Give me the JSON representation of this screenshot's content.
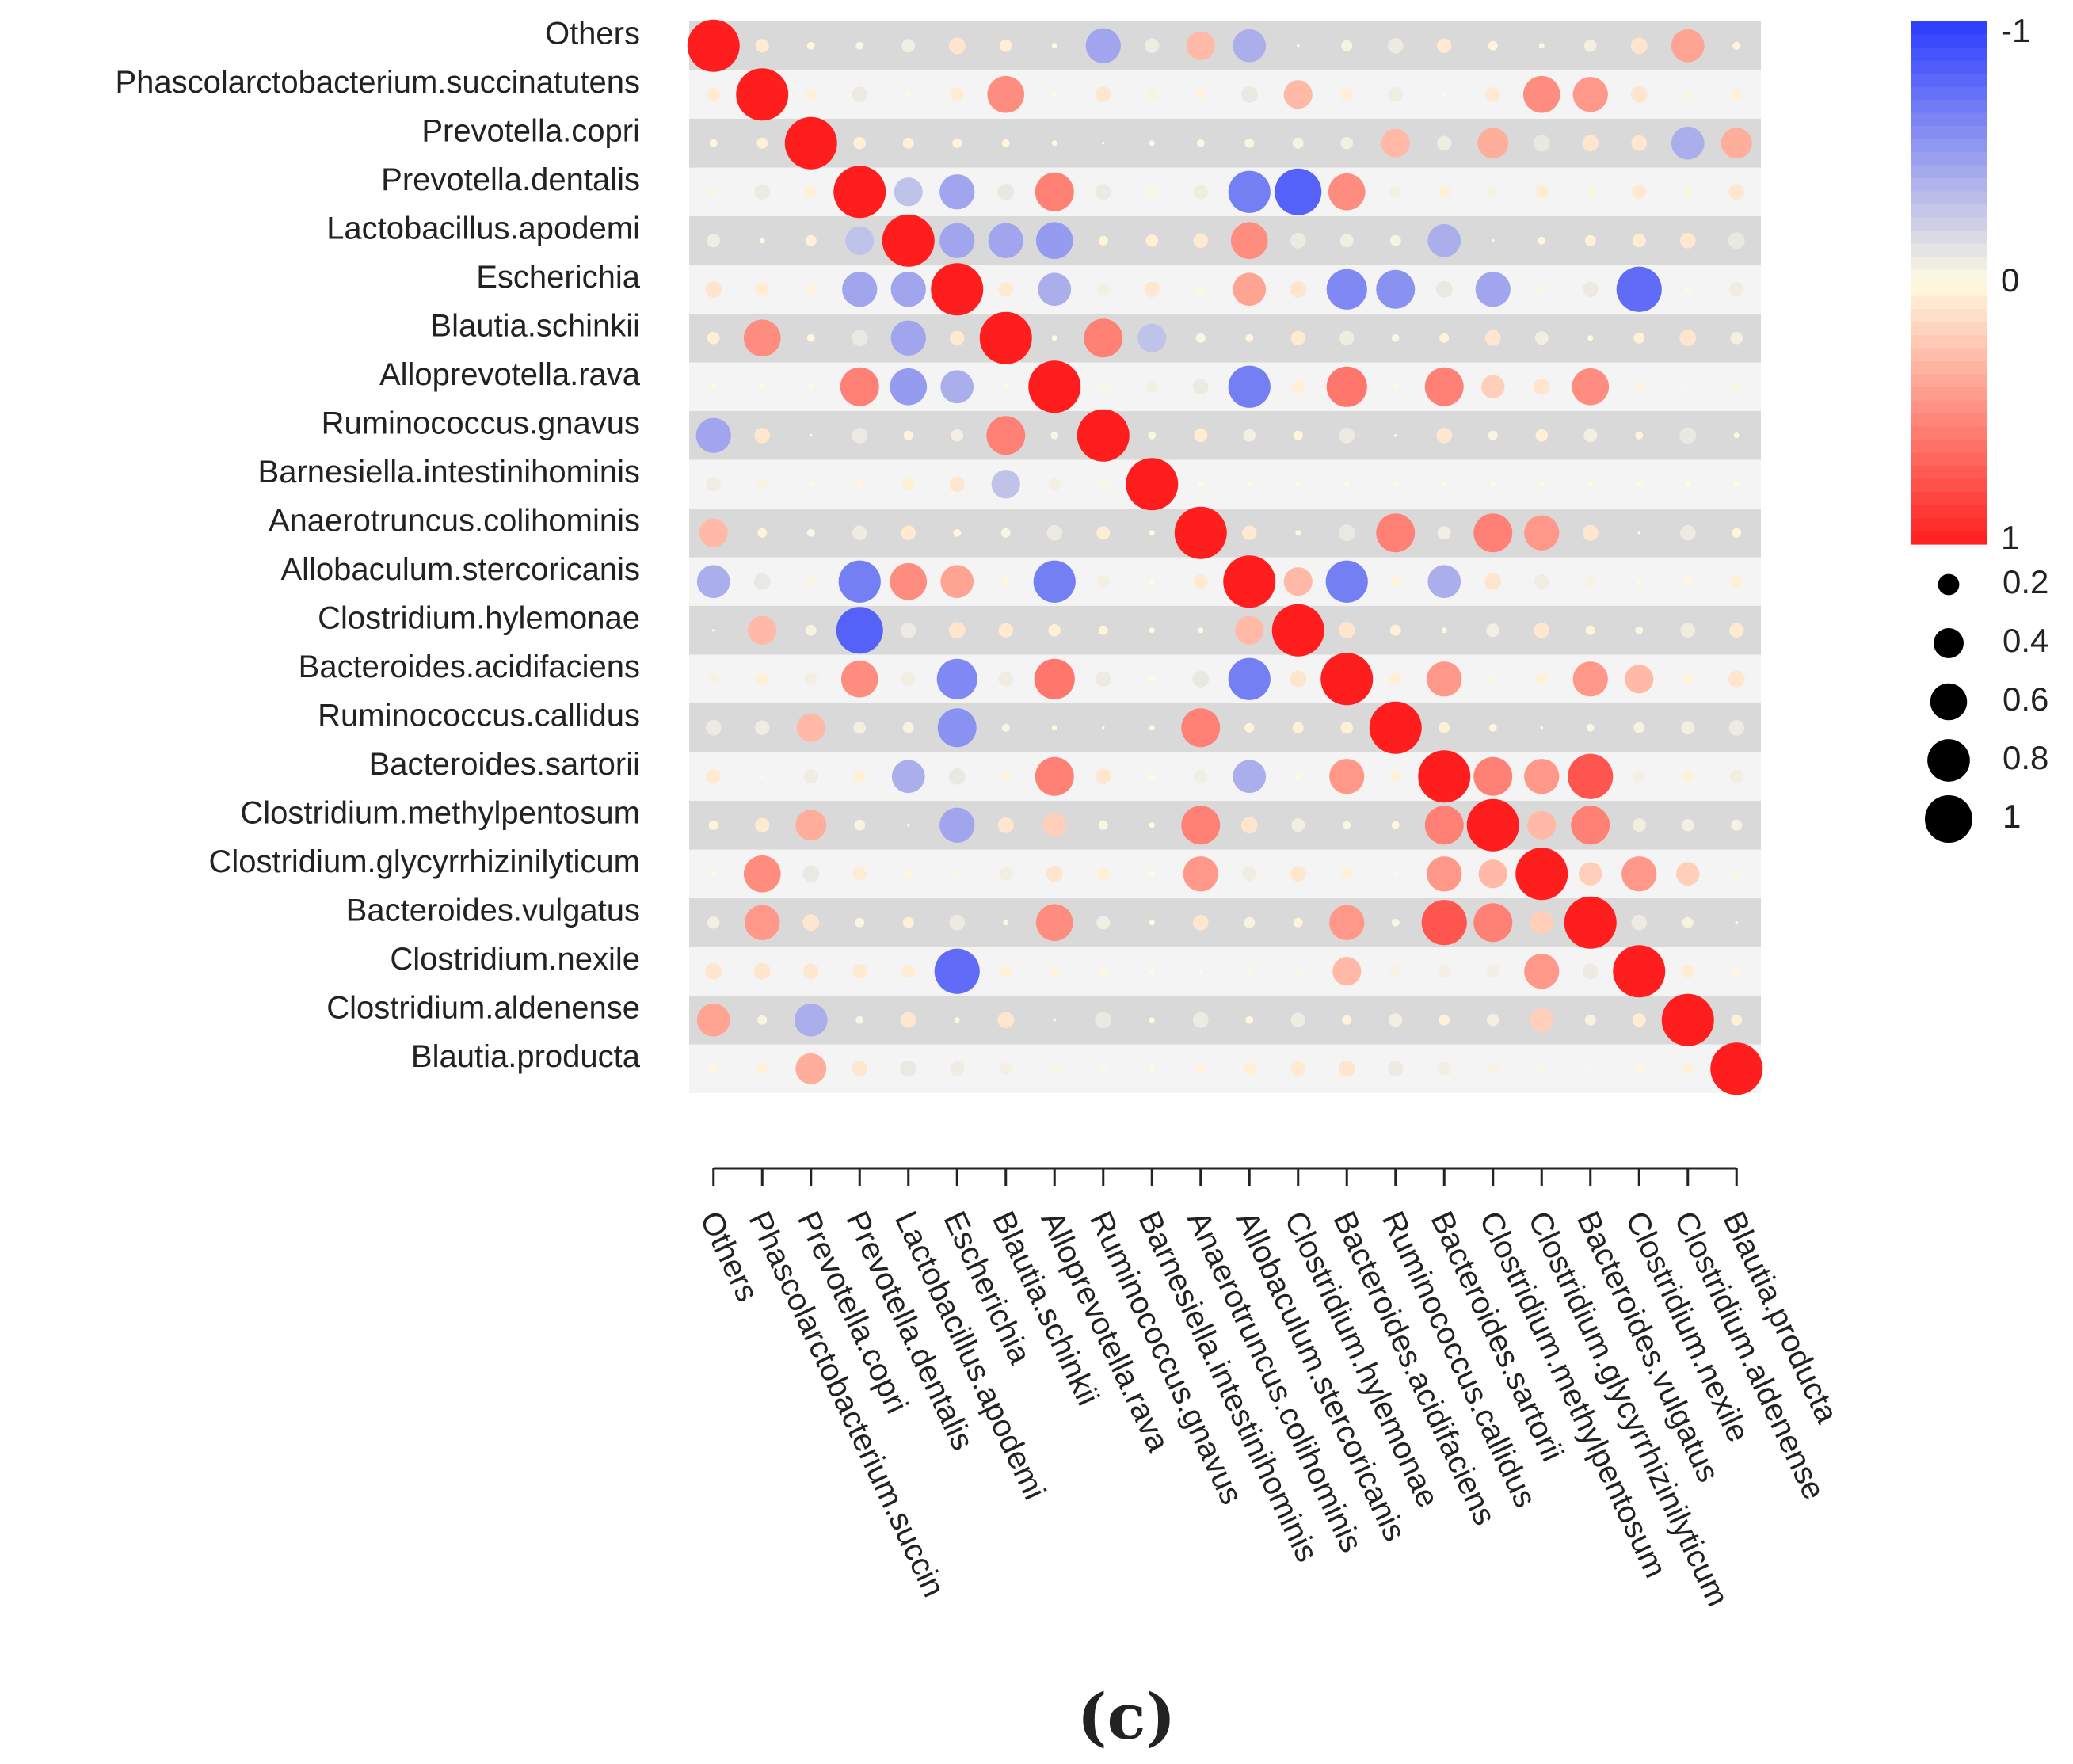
{
  "chart_data": {
    "type": "heatmap",
    "subtype": "correlation-dot-matrix",
    "panel_label": "(c)",
    "labels": [
      "Others",
      "Phascolarctobacterium.succinatutens",
      "Prevotella.copri",
      "Prevotella.dentalis",
      "Lactobacillus.apodemi",
      "Escherichia",
      "Blautia.schinkii",
      "Alloprevotella.rava",
      "Ruminococcus.gnavus",
      "Barnesiella.intestinihominis",
      "Anaerotruncus.colihominis",
      "Allobaculum.stercoricanis",
      "Clostridium.hylemonae",
      "Bacteroides.acidifaciens",
      "Ruminococcus.callidus",
      "Bacteroides.sartorii",
      "Clostridium.methylpentosum",
      "Clostridium.glycyrrhizinilyticum",
      "Bacteroides.vulgatus",
      "Clostridium.nexile",
      "Clostridium.aldenense",
      "Blautia.producta"
    ],
    "x_tick_labels": [
      "Others",
      "Phascolarctobacterium.succin",
      "Prevotella.copri",
      "Prevotella.dentalis",
      "Lactobacillus.apodemi",
      "Escherichia",
      "Blautia.schinkii",
      "Alloprevotella.rava",
      "Ruminococcus.gnavus",
      "Barnesiella.intestinihominis",
      "Anaerotruncus.colihominis",
      "Allobaculum.stercoricanis",
      "Clostridium.hylemonae",
      "Bacteroides.acidifaciens",
      "Ruminococcus.callidus",
      "Bacteroides.sartorii",
      "Clostridium.methylpentosum",
      "Clostridium.glycyrrhizinilyticum",
      "Bacteroides.vulgatus",
      "Clostridium.nexile",
      "Clostridium.aldenense",
      "Blautia.producta"
    ],
    "notable_correlations": [
      {
        "a": "Prevotella.dentalis",
        "b": "Alloprevotella.rava",
        "r": 0.55
      },
      {
        "a": "Prevotella.dentalis",
        "b": "Allobaculum.stercoricanis",
        "r": -0.65
      },
      {
        "a": "Prevotella.dentalis",
        "b": "Clostridium.hylemonae",
        "r": -0.8
      },
      {
        "a": "Prevotella.dentalis",
        "b": "Bacteroides.acidifaciens",
        "r": 0.5
      },
      {
        "a": "Prevotella.dentalis",
        "b": "Lactobacillus.apodemi",
        "r": -0.3
      },
      {
        "a": "Prevotella.dentalis",
        "b": "Escherichia",
        "r": -0.45
      },
      {
        "a": "Phascolarctobacterium.succinatutens",
        "b": "Blautia.schinkii",
        "r": 0.5
      },
      {
        "a": "Phascolarctobacterium.succinatutens",
        "b": "Clostridium.glycyrrhizinilyticum",
        "r": 0.5
      },
      {
        "a": "Phascolarctobacterium.succinatutens",
        "b": "Bacteroides.vulgatus",
        "r": 0.45
      },
      {
        "a": "Phascolarctobacterium.succinatutens",
        "b": "Clostridium.hylemonae",
        "r": 0.3
      },
      {
        "a": "Lactobacillus.apodemi",
        "b": "Alloprevotella.rava",
        "r": -0.5
      },
      {
        "a": "Lactobacillus.apodemi",
        "b": "Escherichia",
        "r": -0.45
      },
      {
        "a": "Lactobacillus.apodemi",
        "b": "Blautia.schinkii",
        "r": -0.45
      },
      {
        "a": "Lactobacillus.apodemi",
        "b": "Allobaculum.stercoricanis",
        "r": 0.5
      },
      {
        "a": "Lactobacillus.apodemi",
        "b": "Bacteroides.sartorii",
        "r": -0.4
      },
      {
        "a": "Escherichia",
        "b": "Clostridium.nexile",
        "r": -0.75
      },
      {
        "a": "Escherichia",
        "b": "Bacteroides.acidifaciens",
        "r": -0.6
      },
      {
        "a": "Escherichia",
        "b": "Ruminococcus.callidus",
        "r": -0.55
      },
      {
        "a": "Escherichia",
        "b": "Clostridium.methylpentosum",
        "r": -0.45
      },
      {
        "a": "Escherichia",
        "b": "Alloprevotella.rava",
        "r": -0.4
      },
      {
        "a": "Escherichia",
        "b": "Allobaculum.stercoricanis",
        "r": 0.4
      },
      {
        "a": "Blautia.schinkii",
        "b": "Ruminococcus.gnavus",
        "r": 0.55
      },
      {
        "a": "Blautia.schinkii",
        "b": "Barnesiella.intestinihominis",
        "r": -0.3
      },
      {
        "a": "Alloprevotella.rava",
        "b": "Allobaculum.stercoricanis",
        "r": -0.65
      },
      {
        "a": "Alloprevotella.rava",
        "b": "Bacteroides.acidifaciens",
        "r": 0.6
      },
      {
        "a": "Alloprevotella.rava",
        "b": "Bacteroides.sartorii",
        "r": 0.55
      },
      {
        "a": "Alloprevotella.rava",
        "b": "Bacteroides.vulgatus",
        "r": 0.5
      },
      {
        "a": "Alloprevotella.rava",
        "b": "Clostridium.methylpentosum",
        "r": 0.2
      },
      {
        "a": "Others",
        "b": "Ruminococcus.gnavus",
        "r": -0.45
      },
      {
        "a": "Others",
        "b": "Allobaculum.stercoricanis",
        "r": -0.4
      },
      {
        "a": "Others",
        "b": "Clostridium.aldenense",
        "r": 0.4
      },
      {
        "a": "Others",
        "b": "Clostridium.nexile",
        "r": 0.1
      },
      {
        "a": "Others",
        "b": "Anaerotruncus.colihominis",
        "r": 0.3
      },
      {
        "a": "Anaerotruncus.colihominis",
        "b": "Ruminococcus.callidus",
        "r": 0.55
      },
      {
        "a": "Anaerotruncus.colihominis",
        "b": "Clostridium.methylpentosum",
        "r": 0.55
      },
      {
        "a": "Anaerotruncus.colihominis",
        "b": "Clostridium.glycyrrhizinilyticum",
        "r": 0.45
      },
      {
        "a": "Allobaculum.stercoricanis",
        "b": "Bacteroides.acidifaciens",
        "r": -0.65
      },
      {
        "a": "Allobaculum.stercoricanis",
        "b": "Clostridium.hylemonae",
        "r": 0.3
      },
      {
        "a": "Allobaculum.stercoricanis",
        "b": "Bacteroides.sartorii",
        "r": -0.4
      },
      {
        "a": "Bacteroides.acidifaciens",
        "b": "Bacteroides.sartorii",
        "r": 0.45
      },
      {
        "a": "Bacteroides.acidifaciens",
        "b": "Bacteroides.vulgatus",
        "r": 0.45
      },
      {
        "a": "Bacteroides.acidifaciens",
        "b": "Clostridium.nexile",
        "r": 0.3
      },
      {
        "a": "Bacteroides.sartorii",
        "b": "Clostridium.methylpentosum",
        "r": 0.55
      },
      {
        "a": "Bacteroides.sartorii",
        "b": "Clostridium.glycyrrhizinilyticum",
        "r": 0.45
      },
      {
        "a": "Bacteroides.sartorii",
        "b": "Bacteroides.vulgatus",
        "r": 0.75
      },
      {
        "a": "Clostridium.methylpentosum",
        "b": "Bacteroides.vulgatus",
        "r": 0.55
      },
      {
        "a": "Clostridium.methylpentosum",
        "b": "Clostridium.glycyrrhizinilyticum",
        "r": 0.3
      },
      {
        "a": "Clostridium.glycyrrhizinilyticum",
        "b": "Bacteroides.vulgatus",
        "r": 0.2
      },
      {
        "a": "Clostridium.glycyrrhizinilyticum",
        "b": "Clostridium.nexile",
        "r": 0.45
      },
      {
        "a": "Clostridium.glycyrrhizinilyticum",
        "b": "Clostridium.aldenense",
        "r": 0.2
      },
      {
        "a": "Prevotella.copri",
        "b": "Blautia.producta",
        "r": 0.35
      },
      {
        "a": "Prevotella.copri",
        "b": "Clostridium.aldenense",
        "r": -0.4
      },
      {
        "a": "Prevotella.copri",
        "b": "Ruminococcus.callidus",
        "r": 0.3
      },
      {
        "a": "Prevotella.copri",
        "b": "Clostridium.methylpentosum",
        "r": 0.35
      }
    ],
    "color_scale": {
      "domain": [
        -1,
        1
      ],
      "negative_color": "#2b3cff",
      "zero_color": "#fffbe0",
      "positive_color": "#ff1e1e",
      "tick_labels": [
        "-1",
        "0",
        "1"
      ],
      "tick_values": [
        -1,
        0,
        1
      ]
    },
    "size_legend": {
      "labels": [
        "0.2",
        "0.4",
        "0.6",
        "0.8",
        "1"
      ],
      "values": [
        0.2,
        0.4,
        0.6,
        0.8,
        1
      ]
    },
    "row_band_colors": [
      "#d9d9d9",
      "#f4f4f4"
    ]
  }
}
